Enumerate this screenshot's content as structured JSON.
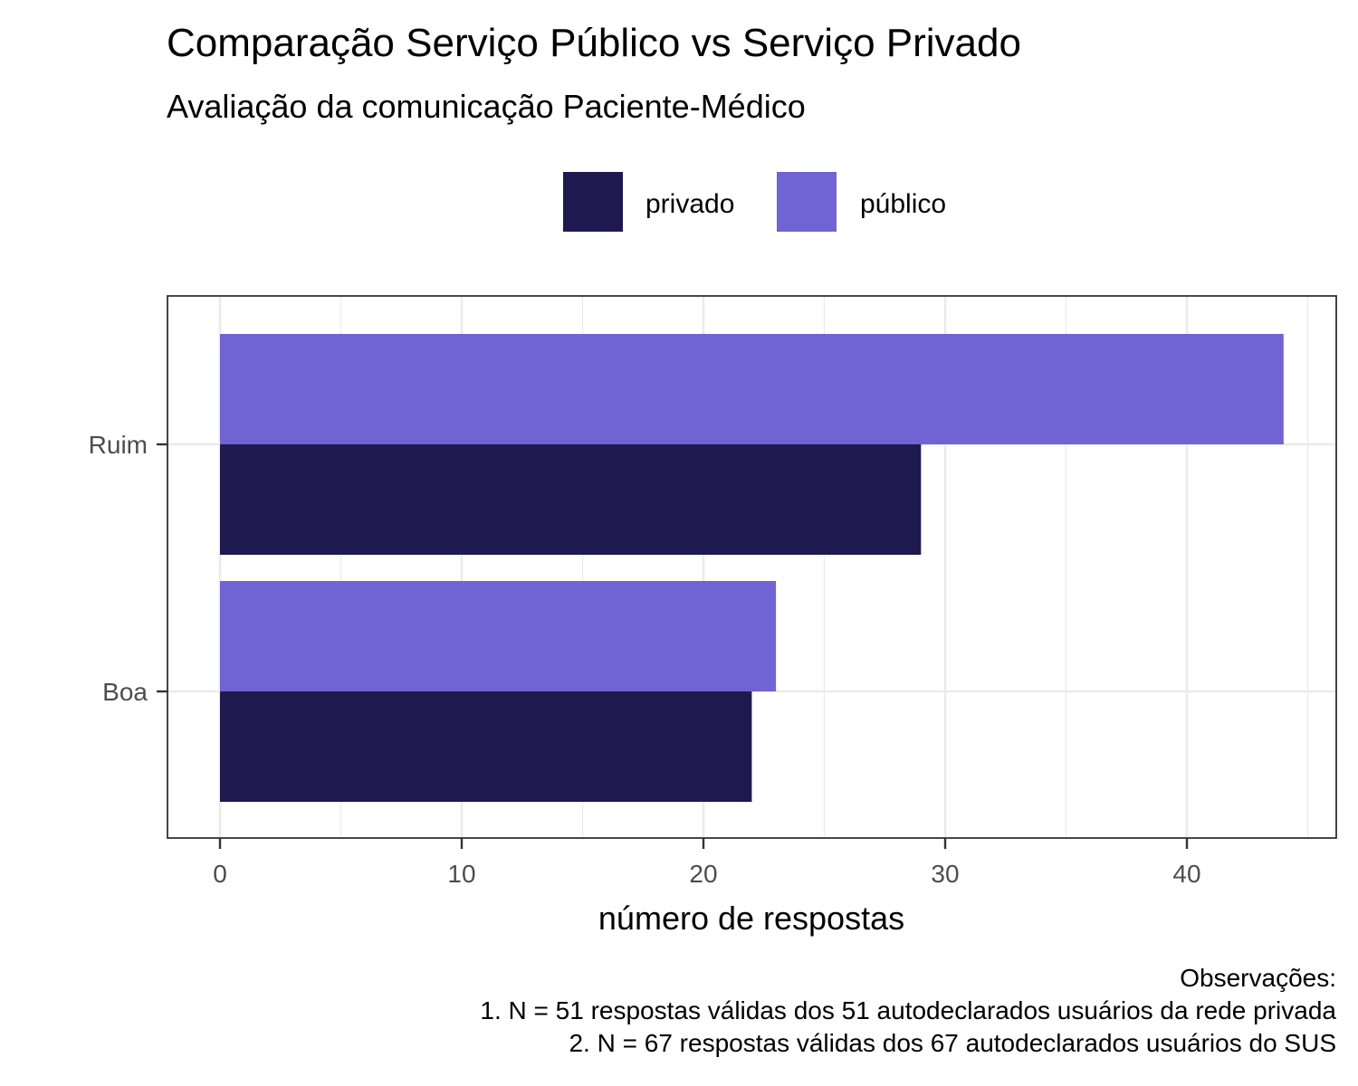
{
  "chart_data": {
    "type": "bar",
    "orientation": "horizontal",
    "title": "Comparação Serviço Público vs Serviço Privado",
    "subtitle": "Avaliação da comunicação Paciente-Médico",
    "xlabel": "número de respostas",
    "ylabel": "",
    "categories": [
      "Ruim",
      "Boa"
    ],
    "series": [
      {
        "name": "privado",
        "color": "#1e1a50",
        "values": [
          29,
          22
        ]
      },
      {
        "name": "público",
        "color": "#7063d3",
        "values": [
          44,
          23
        ]
      }
    ],
    "xlim": [
      0,
      45
    ],
    "xticks": [
      0,
      10,
      20,
      30,
      40
    ],
    "grid": true,
    "legend_position": "top",
    "caption": [
      "Observações:",
      "1. N = 51 respostas válidas dos 51 autodeclarados usuários da rede privada",
      "2. N = 67 respostas válidas dos 67 autodeclarados usuários do SUS"
    ]
  }
}
